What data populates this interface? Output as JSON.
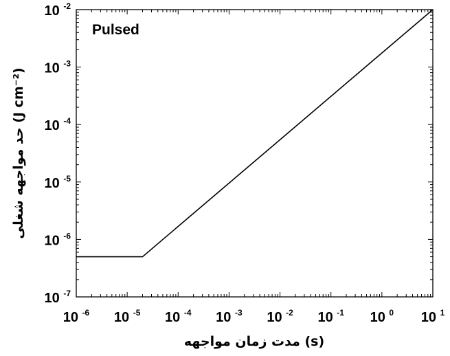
{
  "chart_data": {
    "type": "line",
    "title": "",
    "annotation": "Pulsed",
    "xlabel": "مدت زمان مواجهه (s)",
    "ylabel": "حد مواجهه شغلی (J cm⁻²)",
    "xscale": "log",
    "yscale": "log",
    "xlim": [
      1e-06,
      10
    ],
    "ylim": [
      1e-07,
      0.01
    ],
    "x_ticks": [
      {
        "value": 1e-06,
        "base": "10",
        "exp": "-6"
      },
      {
        "value": 1e-05,
        "base": "10",
        "exp": "-5"
      },
      {
        "value": 0.0001,
        "base": "10",
        "exp": "-4"
      },
      {
        "value": 0.001,
        "base": "10",
        "exp": "-3"
      },
      {
        "value": 0.01,
        "base": "10",
        "exp": "-2"
      },
      {
        "value": 0.1,
        "base": "10",
        "exp": "-1"
      },
      {
        "value": 1,
        "base": "10",
        "exp": "0"
      },
      {
        "value": 10,
        "base": "10",
        "exp": "1"
      }
    ],
    "y_ticks": [
      {
        "value": 1e-07,
        "base": "10",
        "exp": "-7"
      },
      {
        "value": 1e-06,
        "base": "10",
        "exp": "-6"
      },
      {
        "value": 1e-05,
        "base": "10",
        "exp": "-5"
      },
      {
        "value": 0.0001,
        "base": "10",
        "exp": "-4"
      },
      {
        "value": 0.001,
        "base": "10",
        "exp": "-3"
      },
      {
        "value": 0.01,
        "base": "10",
        "exp": "-2"
      }
    ],
    "grid": false,
    "series": [
      {
        "x": [
          1e-06,
          2e-05,
          10
        ],
        "y": [
          5e-07,
          5e-07,
          0.01
        ]
      }
    ]
  }
}
